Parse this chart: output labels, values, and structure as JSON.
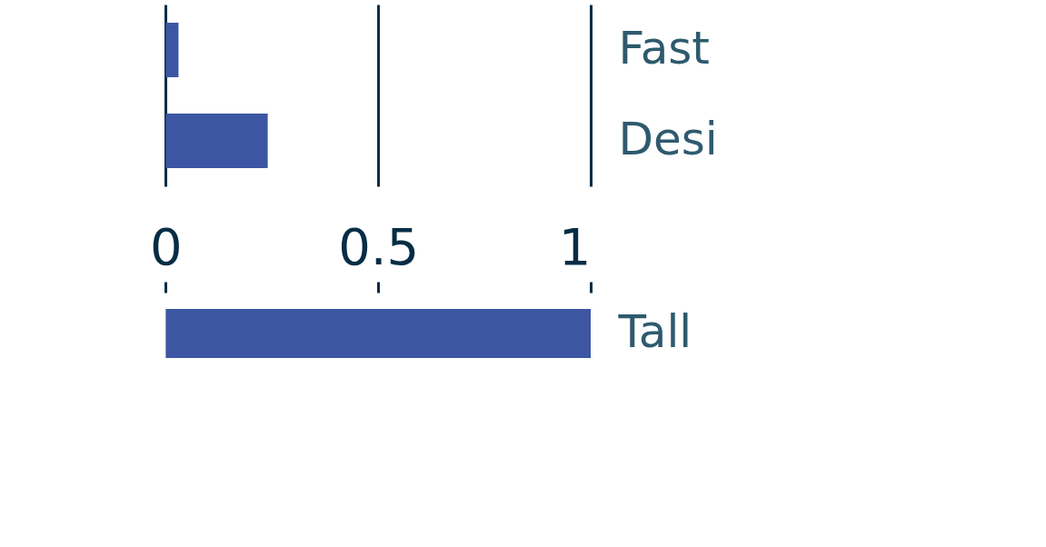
{
  "chart_data": [
    {
      "type": "bar",
      "orientation": "horizontal",
      "categories": [
        "Fast",
        "Desi"
      ],
      "values": [
        0.03,
        0.24
      ],
      "color": "#3c56a3",
      "xlim": [
        -0.39,
        1
      ],
      "xticks": [
        0,
        0.5,
        1
      ],
      "grid": "x",
      "tick_labels": "y"
    },
    {
      "type": "bar",
      "orientation": "horizontal",
      "categories": [
        "Tall"
      ],
      "values": [
        1.0
      ],
      "color": "#3c56a3",
      "xlim": [
        -0.39,
        1
      ],
      "xticks": [
        0,
        0.5,
        1
      ]
    }
  ]
}
